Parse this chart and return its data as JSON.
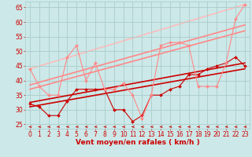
{
  "background_color": "#cce8e8",
  "grid_color": "#aacccc",
  "xlabel": "Vent moyen/en rafales ( km/h )",
  "xlabel_color": "#cc0000",
  "xlabel_fontsize": 6.5,
  "tick_color": "#cc0000",
  "tick_fontsize": 5.5,
  "yticks": [
    25,
    30,
    35,
    40,
    45,
    50,
    55,
    60,
    65
  ],
  "xticks": [
    0,
    1,
    2,
    3,
    4,
    5,
    6,
    7,
    8,
    9,
    10,
    11,
    12,
    13,
    14,
    15,
    16,
    17,
    18,
    19,
    20,
    21,
    22,
    23
  ],
  "ylim": [
    23.5,
    67
  ],
  "xlim": [
    -0.5,
    23.5
  ],
  "lines": [
    {
      "x": [
        0,
        1,
        2,
        3,
        4,
        5,
        6,
        7,
        8,
        9,
        10,
        11,
        12,
        13,
        14,
        15,
        16,
        17,
        18,
        19,
        20,
        21,
        22,
        23
      ],
      "y": [
        32,
        31,
        28,
        28,
        33,
        37,
        37,
        37,
        37,
        30,
        30,
        26,
        28,
        35,
        35,
        37,
        38,
        42,
        42,
        44,
        45,
        46,
        48,
        45
      ],
      "color": "#cc0000",
      "lw": 0.8,
      "marker": "D",
      "ms": 2.0,
      "zorder": 4
    },
    {
      "x": [
        0,
        1,
        2,
        3,
        4,
        5,
        6,
        7,
        8,
        9,
        10,
        11,
        12,
        13,
        14,
        15,
        16,
        17,
        18,
        19,
        20,
        21,
        22,
        23
      ],
      "y": [
        44,
        38,
        35,
        35,
        48,
        52,
        40,
        46,
        37,
        37,
        39,
        35,
        27,
        35,
        52,
        53,
        53,
        52,
        38,
        38,
        38,
        46,
        61,
        66
      ],
      "color": "#ff8888",
      "lw": 0.8,
      "marker": "D",
      "ms": 2.0,
      "zorder": 4
    },
    {
      "x": [
        0,
        23
      ],
      "y": [
        31,
        44
      ],
      "color": "#cc0000",
      "lw": 1.2,
      "marker": null,
      "ms": 0,
      "zorder": 3
    },
    {
      "x": [
        0,
        23
      ],
      "y": [
        32.5,
        46
      ],
      "color": "#cc0000",
      "lw": 1.2,
      "marker": null,
      "ms": 0,
      "zorder": 3
    },
    {
      "x": [
        0,
        23
      ],
      "y": [
        37,
        57
      ],
      "color": "#ff8888",
      "lw": 1.2,
      "marker": null,
      "ms": 0,
      "zorder": 2
    },
    {
      "x": [
        0,
        23
      ],
      "y": [
        38.5,
        59
      ],
      "color": "#ff8888",
      "lw": 1.2,
      "marker": null,
      "ms": 0,
      "zorder": 2
    },
    {
      "x": [
        0,
        23
      ],
      "y": [
        44,
        66
      ],
      "color": "#ffbbbb",
      "lw": 1.2,
      "marker": null,
      "ms": 0,
      "zorder": 1
    }
  ]
}
